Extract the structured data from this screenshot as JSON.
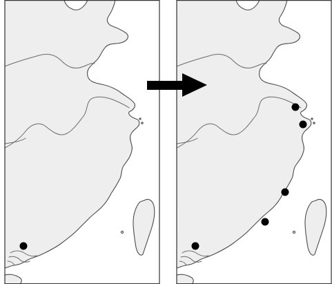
{
  "figure": {
    "panels": [
      {
        "name": "before",
        "city_markers": [
          {
            "id": "guangzhou",
            "label": ""
          }
        ]
      },
      {
        "name": "after",
        "city_markers": [
          {
            "id": "shanghai",
            "label": ""
          },
          {
            "id": "ningbo",
            "label": ""
          },
          {
            "id": "fuzhou",
            "label": ""
          },
          {
            "id": "xiamen",
            "label": ""
          },
          {
            "id": "guangzhou",
            "label": ""
          }
        ]
      }
    ],
    "arrow": {
      "direction": "right",
      "color": "#000000"
    },
    "colors": {
      "land": "#eeeeee",
      "sea": "#ffffff",
      "coastline": "#4a4a4a",
      "marker": "#000000"
    }
  }
}
